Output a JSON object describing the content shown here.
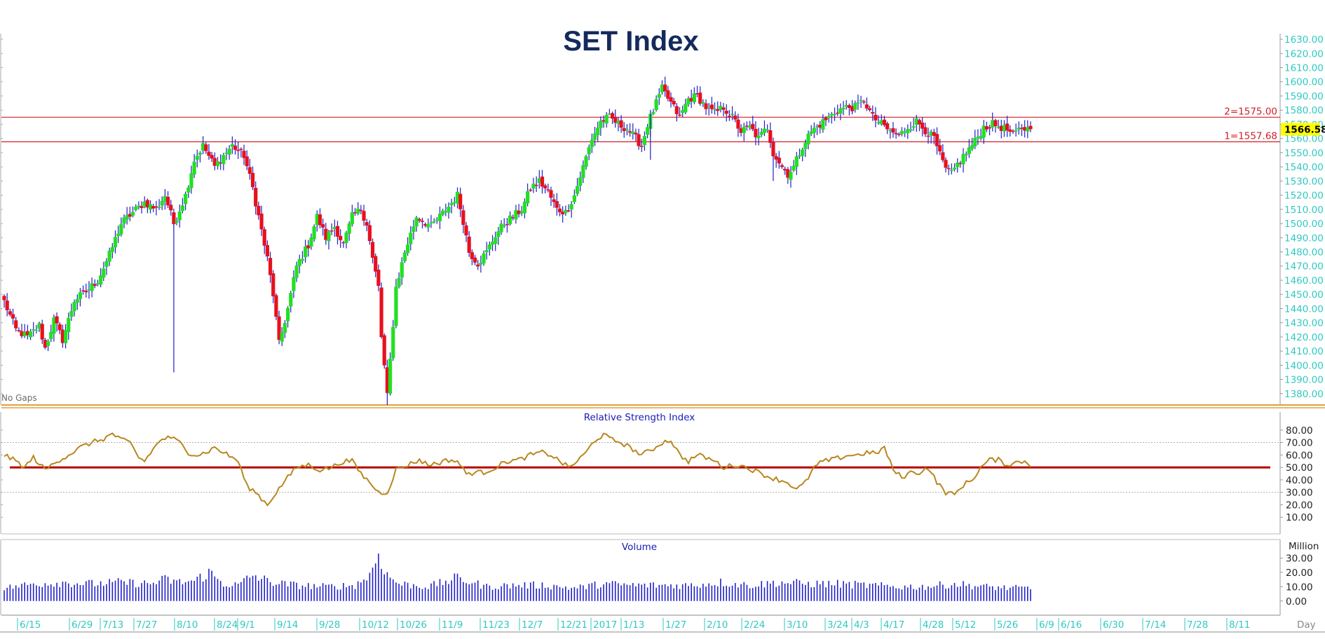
{
  "chart_data": [
    {
      "type": "candlestick",
      "title": "SET Index",
      "note": "No Gaps",
      "x_axis_unit": "Day",
      "ylim": [
        1372,
        1632
      ],
      "y_ticks": [
        "1380.00",
        "1390.00",
        "1400.00",
        "1410.00",
        "1420.00",
        "1430.00",
        "1440.00",
        "1450.00",
        "1460.00",
        "1470.00",
        "1480.00",
        "1490.00",
        "1500.00",
        "1510.00",
        "1520.00",
        "1530.00",
        "1540.00",
        "1550.00",
        "1560.00",
        "1570.00",
        "1580.00",
        "1590.00",
        "1600.00",
        "1610.00",
        "1620.00",
        "1630.00"
      ],
      "x_ticks": [
        "6/15",
        "6/29",
        "7/13",
        "7/27",
        "8/10",
        "8/24",
        "9/1",
        "9/14",
        "9/28",
        "10/12",
        "10/26",
        "11/9",
        "11/23",
        "12/7",
        "12/21",
        "2017",
        "1/13",
        "1/27",
        "2/10",
        "2/24",
        "3/10",
        "3/24",
        "4/3",
        "4/17",
        "4/28",
        "5/12",
        "5/26",
        "6/9",
        "6/16",
        "6/30",
        "7/14",
        "7/28",
        "8/11"
      ],
      "horizontal_lines": [
        {
          "label": "2=1575.00",
          "value": 1575.0,
          "color": "#d0202a"
        },
        {
          "label": "1=1557.68",
          "value": 1557.68,
          "color": "#d0202a"
        }
      ],
      "last_value": "1566.58",
      "up_color": "#22e022",
      "down_color": "#e8101c",
      "wick_color": "#2020c8",
      "anchor_closes": [
        [
          0,
          1445
        ],
        [
          4,
          1425
        ],
        [
          8,
          1420
        ],
        [
          12,
          1428
        ],
        [
          14,
          1412
        ],
        [
          17,
          1432
        ],
        [
          20,
          1418
        ],
        [
          24,
          1446
        ],
        [
          28,
          1452
        ],
        [
          32,
          1460
        ],
        [
          36,
          1478
        ],
        [
          40,
          1500
        ],
        [
          44,
          1508
        ],
        [
          48,
          1515
        ],
        [
          52,
          1510
        ],
        [
          55,
          1520
        ],
        [
          58,
          1500
        ],
        [
          62,
          1520
        ],
        [
          65,
          1545
        ],
        [
          68,
          1555
        ],
        [
          72,
          1540
        ],
        [
          75,
          1548
        ],
        [
          78,
          1555
        ],
        [
          82,
          1548
        ],
        [
          85,
          1525
        ],
        [
          88,
          1495
        ],
        [
          90,
          1475
        ],
        [
          92,
          1450
        ],
        [
          94,
          1415
        ],
        [
          97,
          1440
        ],
        [
          100,
          1470
        ],
        [
          104,
          1485
        ],
        [
          107,
          1505
        ],
        [
          110,
          1490
        ],
        [
          113,
          1498
        ],
        [
          116,
          1485
        ],
        [
          119,
          1505
        ],
        [
          122,
          1510
        ],
        [
          124,
          1500
        ],
        [
          126,
          1475
        ],
        [
          128,
          1455
        ],
        [
          129,
          1420
        ],
        [
          131,
          1378
        ],
        [
          134,
          1455
        ],
        [
          137,
          1480
        ],
        [
          141,
          1505
        ],
        [
          146,
          1498
        ],
        [
          149,
          1505
        ],
        [
          152,
          1512
        ],
        [
          155,
          1520
        ],
        [
          157,
          1502
        ],
        [
          159,
          1480
        ],
        [
          162,
          1472
        ],
        [
          165,
          1480
        ],
        [
          168,
          1492
        ],
        [
          171,
          1500
        ],
        [
          174,
          1505
        ],
        [
          177,
          1510
        ],
        [
          180,
          1525
        ],
        [
          183,
          1530
        ],
        [
          186,
          1522
        ],
        [
          189,
          1510
        ],
        [
          192,
          1508
        ],
        [
          195,
          1520
        ],
        [
          198,
          1540
        ],
        [
          201,
          1560
        ],
        [
          204,
          1572
        ],
        [
          207,
          1575
        ],
        [
          210,
          1570
        ],
        [
          213,
          1567
        ],
        [
          216,
          1560
        ],
        [
          218,
          1555
        ],
        [
          220,
          1570
        ],
        [
          222,
          1580
        ],
        [
          225,
          1595
        ],
        [
          228,
          1585
        ],
        [
          231,
          1575
        ],
        [
          234,
          1588
        ],
        [
          237,
          1590
        ],
        [
          240,
          1582
        ],
        [
          243,
          1578
        ],
        [
          246,
          1582
        ],
        [
          249,
          1575
        ],
        [
          252,
          1565
        ],
        [
          255,
          1568
        ],
        [
          258,
          1560
        ],
        [
          261,
          1568
        ],
        [
          263,
          1550
        ],
        [
          266,
          1540
        ],
        [
          268,
          1535
        ],
        [
          270,
          1540
        ],
        [
          273,
          1555
        ],
        [
          276,
          1565
        ],
        [
          279,
          1570
        ],
        [
          282,
          1575
        ],
        [
          285,
          1580
        ],
        [
          288,
          1582
        ],
        [
          291,
          1582
        ],
        [
          294,
          1587
        ],
        [
          297,
          1575
        ],
        [
          300,
          1570
        ],
        [
          303,
          1565
        ],
        [
          306,
          1562
        ],
        [
          309,
          1568
        ],
        [
          312,
          1572
        ],
        [
          315,
          1566
        ],
        [
          318,
          1560
        ],
        [
          320,
          1548
        ],
        [
          322,
          1538
        ],
        [
          324,
          1535
        ],
        [
          326,
          1542
        ],
        [
          329,
          1550
        ],
        [
          332,
          1558
        ],
        [
          335,
          1568
        ],
        [
          338,
          1570
        ],
        [
          341,
          1568
        ],
        [
          343,
          1566
        ],
        [
          345,
          1562
        ],
        [
          348,
          1568
        ],
        [
          350,
          1566.58
        ]
      ]
    },
    {
      "type": "line",
      "title": "Relative Strength Index",
      "ylim": [
        0,
        90
      ],
      "y_ticks": [
        "10.00",
        "20.00",
        "30.00",
        "40.00",
        "50.00",
        "60.00",
        "70.00",
        "80.00"
      ],
      "reference_lines": [
        30,
        70
      ],
      "threshold": 50,
      "series_color": "#b8871f",
      "threshold_color": "#b40000",
      "anchor_values": [
        [
          0,
          60
        ],
        [
          4,
          55
        ],
        [
          7,
          50
        ],
        [
          10,
          58
        ],
        [
          14,
          48
        ],
        [
          18,
          55
        ],
        [
          22,
          60
        ],
        [
          26,
          66
        ],
        [
          30,
          70
        ],
        [
          34,
          73
        ],
        [
          37,
          77
        ],
        [
          40,
          72
        ],
        [
          43,
          70
        ],
        [
          46,
          58
        ],
        [
          48,
          55
        ],
        [
          51,
          65
        ],
        [
          54,
          73
        ],
        [
          57,
          74
        ],
        [
          60,
          70
        ],
        [
          63,
          62
        ],
        [
          66,
          60
        ],
        [
          69,
          62
        ],
        [
          72,
          66
        ],
        [
          75,
          62
        ],
        [
          78,
          58
        ],
        [
          80,
          55
        ],
        [
          83,
          35
        ],
        [
          86,
          30
        ],
        [
          88,
          25
        ],
        [
          90,
          20
        ],
        [
          93,
          30
        ],
        [
          97,
          42
        ],
        [
          100,
          50
        ],
        [
          104,
          52
        ],
        [
          108,
          48
        ],
        [
          112,
          50
        ],
        [
          116,
          55
        ],
        [
          119,
          55
        ],
        [
          122,
          45
        ],
        [
          125,
          38
        ],
        [
          128,
          30
        ],
        [
          131,
          30
        ],
        [
          134,
          48
        ],
        [
          138,
          52
        ],
        [
          142,
          56
        ],
        [
          145,
          52
        ],
        [
          149,
          54
        ],
        [
          152,
          56
        ],
        [
          155,
          55
        ],
        [
          158,
          45
        ],
        [
          161,
          46
        ],
        [
          164,
          46
        ],
        [
          168,
          50
        ],
        [
          172,
          55
        ],
        [
          176,
          56
        ],
        [
          180,
          60
        ],
        [
          184,
          62
        ],
        [
          187,
          60
        ],
        [
          190,
          55
        ],
        [
          193,
          50
        ],
        [
          196,
          55
        ],
        [
          199,
          62
        ],
        [
          202,
          72
        ],
        [
          205,
          76
        ],
        [
          208,
          72
        ],
        [
          211,
          70
        ],
        [
          214,
          66
        ],
        [
          218,
          60
        ],
        [
          222,
          65
        ],
        [
          225,
          70
        ],
        [
          228,
          72
        ],
        [
          231,
          60
        ],
        [
          234,
          55
        ],
        [
          237,
          60
        ],
        [
          240,
          58
        ],
        [
          243,
          55
        ],
        [
          246,
          50
        ],
        [
          250,
          52
        ],
        [
          254,
          50
        ],
        [
          258,
          46
        ],
        [
          262,
          42
        ],
        [
          265,
          40
        ],
        [
          268,
          38
        ],
        [
          271,
          32
        ],
        [
          274,
          38
        ],
        [
          277,
          50
        ],
        [
          280,
          55
        ],
        [
          283,
          56
        ],
        [
          286,
          58
        ],
        [
          289,
          60
        ],
        [
          292,
          60
        ],
        [
          295,
          62
        ],
        [
          298,
          61
        ],
        [
          301,
          66
        ],
        [
          304,
          48
        ],
        [
          307,
          42
        ],
        [
          310,
          46
        ],
        [
          313,
          46
        ],
        [
          316,
          50
        ],
        [
          319,
          38
        ],
        [
          322,
          30
        ],
        [
          325,
          28
        ],
        [
          328,
          36
        ],
        [
          331,
          40
        ],
        [
          334,
          50
        ],
        [
          337,
          56
        ],
        [
          340,
          56
        ],
        [
          343,
          52
        ],
        [
          346,
          54
        ],
        [
          349,
          55
        ],
        [
          351,
          52
        ]
      ]
    },
    {
      "type": "bar",
      "title": "Volume",
      "ylabel": "Million",
      "ylim": [
        -5,
        40
      ],
      "y_ticks": [
        "0.00",
        "10.00",
        "20.00",
        "30.00"
      ],
      "bar_color": "#2020c8",
      "anchor_values": [
        [
          0,
          9
        ],
        [
          10,
          12
        ],
        [
          20,
          13
        ],
        [
          30,
          12
        ],
        [
          40,
          13
        ],
        [
          50,
          12
        ],
        [
          55,
          15
        ],
        [
          60,
          13
        ],
        [
          65,
          14
        ],
        [
          70,
          20
        ],
        [
          75,
          12
        ],
        [
          80,
          11
        ],
        [
          85,
          18
        ],
        [
          90,
          14
        ],
        [
          95,
          12
        ],
        [
          100,
          11
        ],
        [
          110,
          10
        ],
        [
          120,
          11
        ],
        [
          125,
          18
        ],
        [
          128,
          33
        ],
        [
          131,
          18
        ],
        [
          135,
          12
        ],
        [
          145,
          10
        ],
        [
          155,
          16
        ],
        [
          165,
          10
        ],
        [
          175,
          11
        ],
        [
          185,
          11
        ],
        [
          195,
          9
        ],
        [
          205,
          12
        ],
        [
          215,
          11
        ],
        [
          225,
          11
        ],
        [
          235,
          11
        ],
        [
          245,
          13
        ],
        [
          255,
          11
        ],
        [
          265,
          13
        ],
        [
          275,
          12
        ],
        [
          285,
          12
        ],
        [
          295,
          11
        ],
        [
          305,
          10
        ],
        [
          315,
          10
        ],
        [
          325,
          12
        ],
        [
          335,
          10
        ],
        [
          345,
          9
        ],
        [
          351,
          9
        ]
      ]
    }
  ]
}
